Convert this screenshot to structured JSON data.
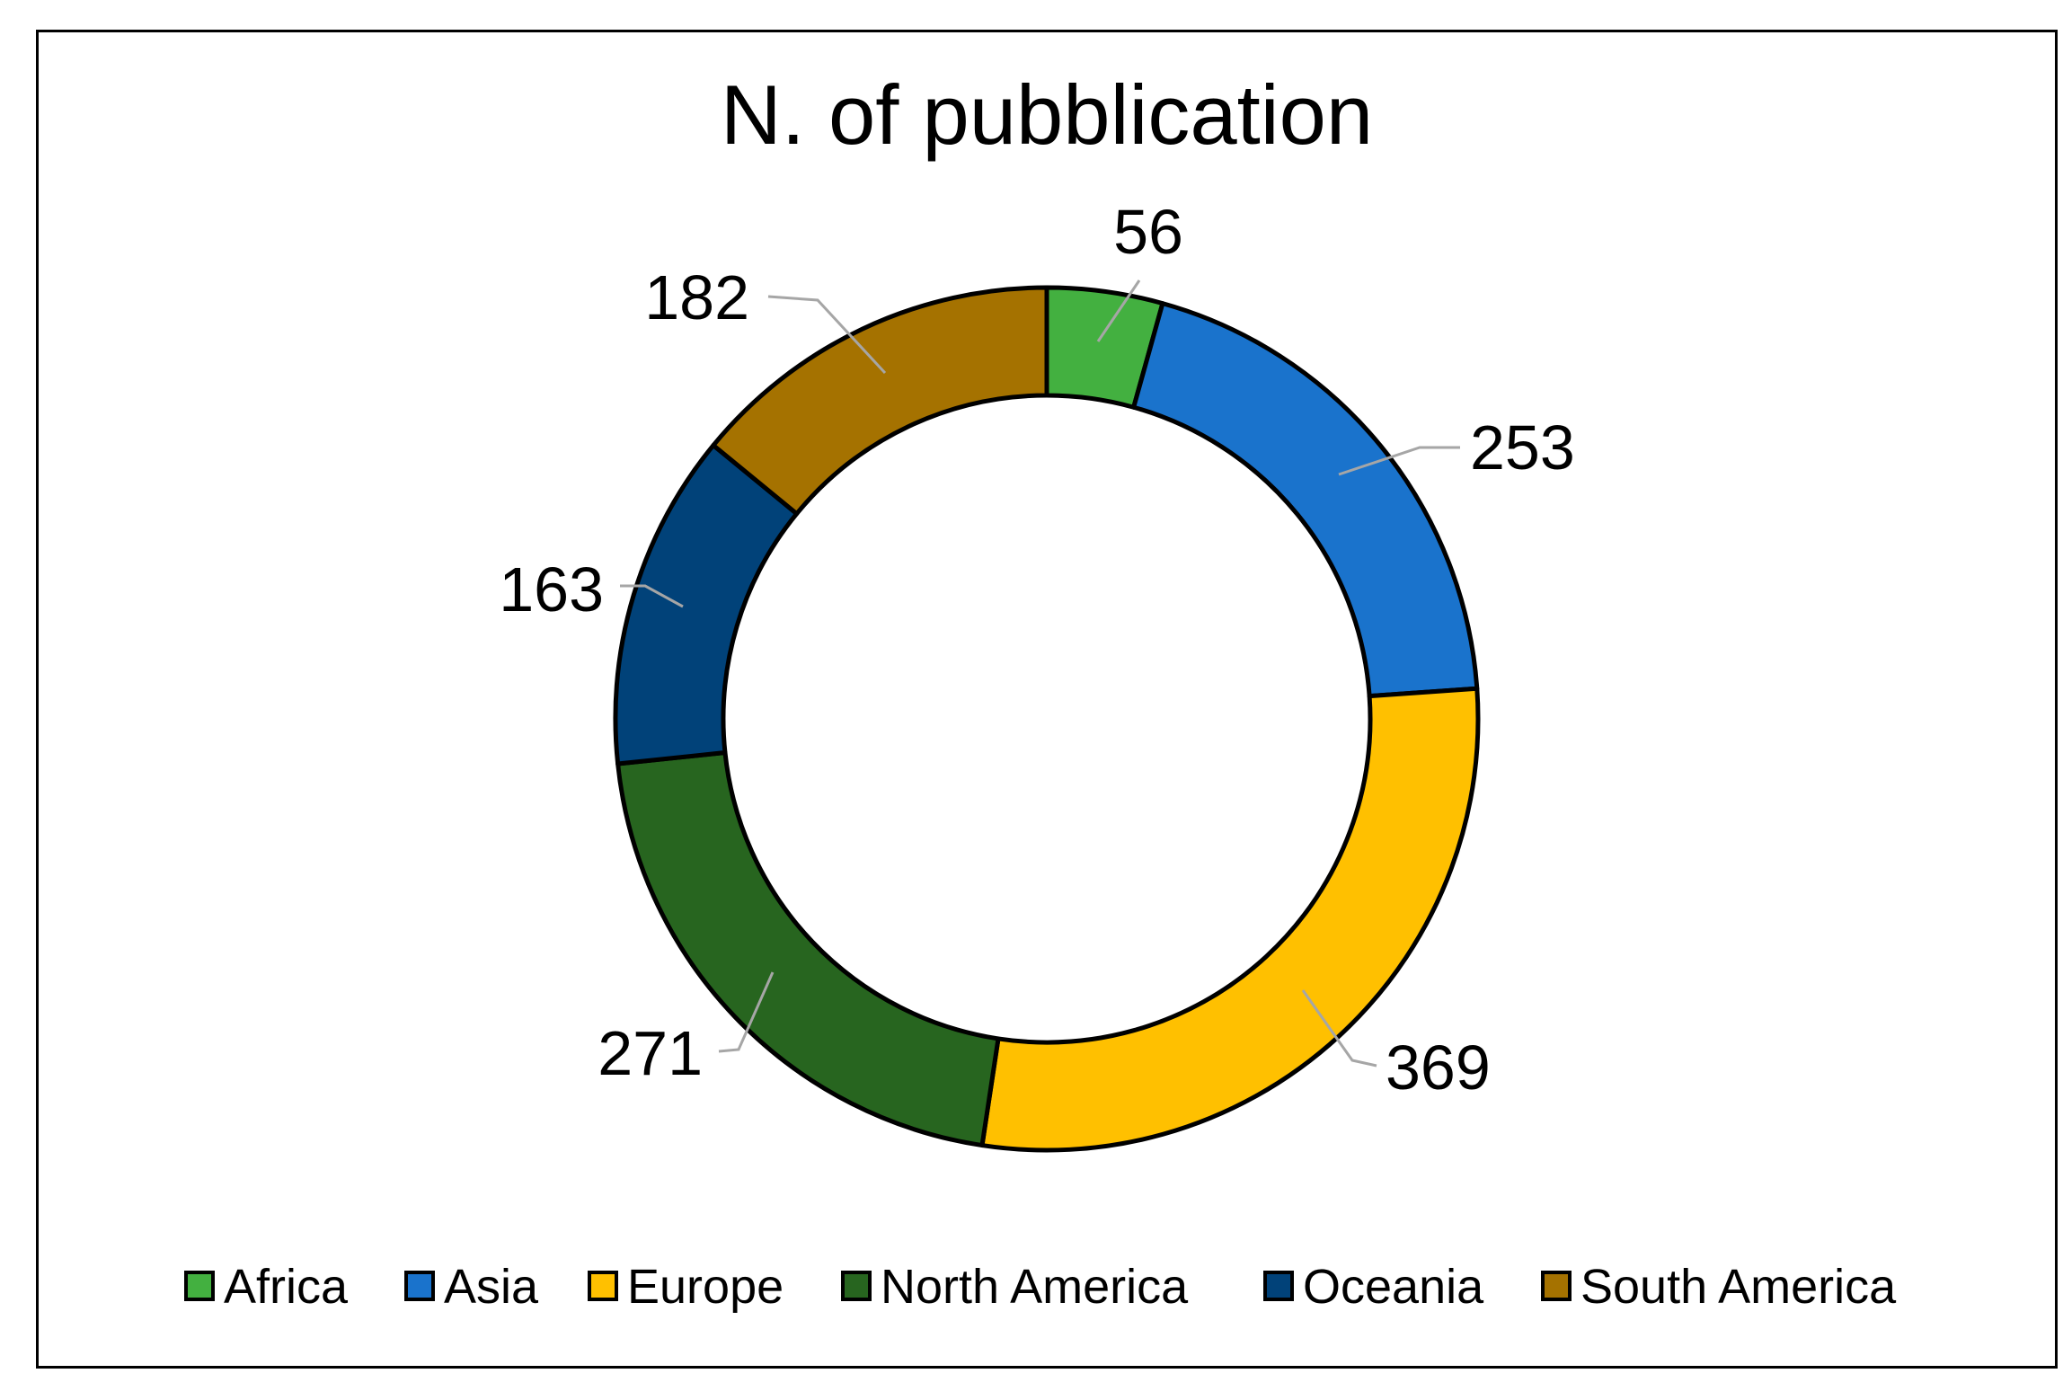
{
  "chart_data": {
    "type": "pie",
    "variant": "donut",
    "title": "N. of pubblication",
    "categories": [
      "Africa",
      "Asia",
      "Europe",
      "North America",
      "Oceania",
      "South America"
    ],
    "values": [
      56,
      253,
      369,
      271,
      163,
      182
    ],
    "colors": [
      "#43B040",
      "#1A73CC",
      "#FFC000",
      "#27651F",
      "#014279",
      "#A57200"
    ],
    "legend_position": "bottom",
    "data_labels": true
  }
}
